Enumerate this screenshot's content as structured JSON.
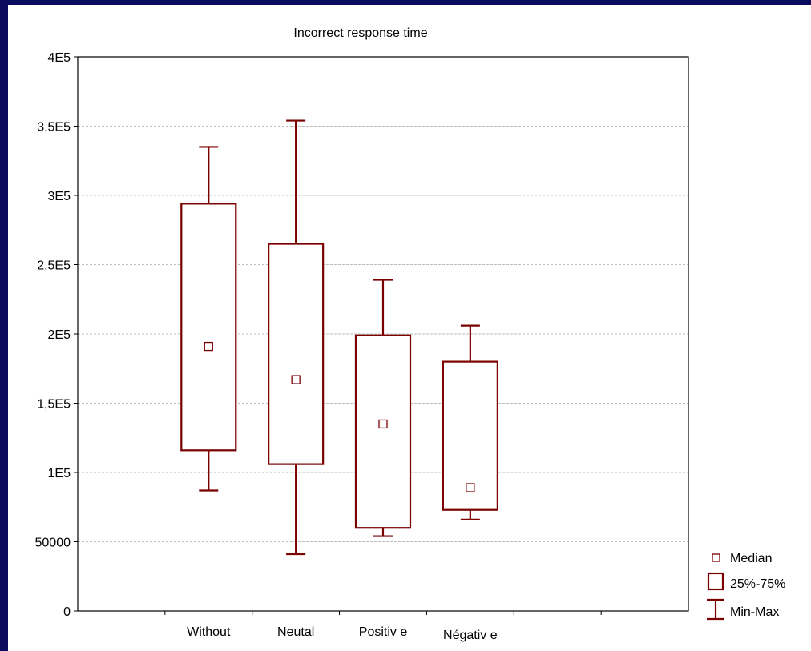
{
  "chart_data": {
    "type": "boxplot",
    "title": "Incorrect response time",
    "xlabel": "",
    "ylabel": "",
    "ylim": [
      0,
      400000
    ],
    "yticks": [
      {
        "value": 0,
        "label": "0"
      },
      {
        "value": 50000,
        "label": "50000"
      },
      {
        "value": 100000,
        "label": "1E5"
      },
      {
        "value": 150000,
        "label": "1,5E5"
      },
      {
        "value": 200000,
        "label": "2E5"
      },
      {
        "value": 250000,
        "label": "2,5E5"
      },
      {
        "value": 300000,
        "label": "3E5"
      },
      {
        "value": 350000,
        "label": "3,5E5"
      },
      {
        "value": 400000,
        "label": "4E5"
      }
    ],
    "grid": true,
    "categories": [
      "Without",
      "Neutal",
      "Positiv e",
      "Négativ e"
    ],
    "boxes": [
      {
        "category": "Without",
        "min": 87000,
        "q1": 116000,
        "median": 191000,
        "q3": 294000,
        "max": 335000
      },
      {
        "category": "Neutal",
        "min": 41000,
        "q1": 106000,
        "median": 167000,
        "q3": 265000,
        "max": 354000
      },
      {
        "category": "Positiv e",
        "min": 54000,
        "q1": 60000,
        "median": 135000,
        "q3": 199000,
        "max": 239000
      },
      {
        "category": "Négativ e",
        "min": 66000,
        "q1": 73000,
        "median": 89000,
        "q3": 180000,
        "max": 206000
      }
    ],
    "legend": {
      "position": "bottom-right",
      "entries": [
        "Median",
        "25%-75%",
        "Min-Max"
      ]
    },
    "colors": {
      "box": "#7a0000",
      "grid": "#bdbdbd",
      "background": "#0a0a5e"
    }
  }
}
